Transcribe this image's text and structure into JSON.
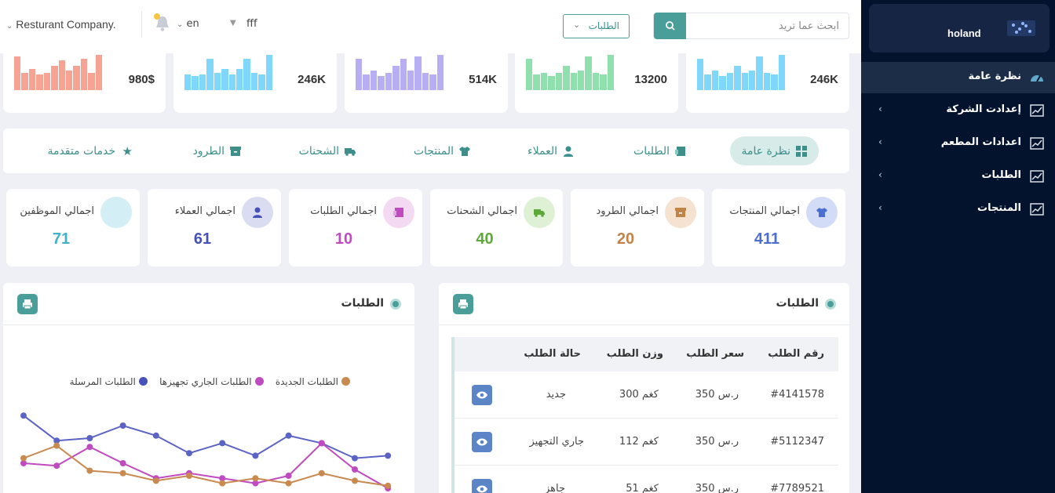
{
  "sidebar": {
    "brand": "holand",
    "items": [
      {
        "label": "نظرة عامة",
        "active": true,
        "icon": "gauge-icon"
      },
      {
        "label": "إعدادت الشركة",
        "icon": "chart-icon"
      },
      {
        "label": "اعدادات المطعم",
        "icon": "chart-icon"
      },
      {
        "label": "الطلبات",
        "icon": "chart-icon"
      },
      {
        "label": "المنتجات",
        "icon": "chart-icon"
      }
    ]
  },
  "topbar": {
    "search_placeholder": "ابحث عما تريد",
    "select_label": "الطلبات",
    "user": "fff",
    "lang": "en",
    "company": "Resturant Company."
  },
  "mini_cards": [
    {
      "value": "246K",
      "color": "#7fd8fb"
    },
    {
      "value": "13200",
      "color": "#8fe0ac"
    },
    {
      "value": "514K",
      "color": "#b7aef3"
    },
    {
      "value": "246K",
      "color": "#7fd8fb"
    },
    {
      "value": "980$",
      "color": "#f7a394"
    }
  ],
  "tabs": [
    {
      "label": "نظرة عامة",
      "active": true,
      "icon": "grid-icon"
    },
    {
      "label": "الطلبات",
      "icon": "orders-icon"
    },
    {
      "label": "العملاء",
      "icon": "customer-icon"
    },
    {
      "label": "المنتجات",
      "icon": "tshirt-icon"
    },
    {
      "label": "الشحنات",
      "icon": "truck-icon"
    },
    {
      "label": "الطرود",
      "icon": "box-icon"
    },
    {
      "label": "خدمات متقدمة",
      "icon": "star-icon"
    }
  ],
  "kpis": [
    {
      "label": "اجمالي المنتجات",
      "value": "411",
      "color": "#4a6fd1",
      "bg": "#d3dcf7"
    },
    {
      "label": "اجمالي الطرود",
      "value": "20",
      "color": "#c08348",
      "bg": "#f5e2d0"
    },
    {
      "label": "اجمالي الشحنات",
      "value": "40",
      "color": "#5ea93a",
      "bg": "#dff1d5"
    },
    {
      "label": "اجمالي الطلبات",
      "value": "10",
      "color": "#c04ac0",
      "bg": "#f4d9f3"
    },
    {
      "label": "اجمالي العملاء",
      "value": "61",
      "color": "#4651b8",
      "bg": "#dadcf2"
    },
    {
      "label": "اجمالي الموظفين",
      "value": "71",
      "color": "#3fb2c6",
      "bg": "#d3eef4"
    }
  ],
  "orders_table": {
    "title": "الطلبات",
    "headers": {
      "id": "رقم الطلب",
      "price": "سعر الطلب",
      "weight": "وزن الطلب",
      "status": "حالة الطلب"
    },
    "rows": [
      {
        "id": "#4141578",
        "price": "350 ر.س",
        "weight": "300 كغم",
        "status": "جديد"
      },
      {
        "id": "#5112347",
        "price": "350 ر.س",
        "weight": "112 كغم",
        "status": "جاري التجهيز"
      },
      {
        "id": "#7789521",
        "price": "350 ر.س",
        "weight": "51 كغم",
        "status": "جاهز"
      }
    ]
  },
  "orders_chart": {
    "title": "الطلبات",
    "legend": [
      {
        "label": "الطلبات الجديدة",
        "color": "#c98a4f"
      },
      {
        "label": "الطلبات الجاري تجهيزها",
        "color": "#c04ac0"
      },
      {
        "label": "الطلبات المرسلة",
        "color": "#4652b9"
      }
    ]
  },
  "chart_data": {
    "type": "line",
    "x": [
      1,
      2,
      3,
      4,
      5,
      6,
      7,
      8,
      9,
      10,
      11,
      12
    ],
    "series": [
      {
        "name": "الطلبات المرسلة",
        "color": "#5b63c4",
        "values": [
          88,
          68,
          70,
          80,
          72,
          58,
          66,
          56,
          72,
          66,
          54,
          56
        ]
      },
      {
        "name": "الطلبات الجاري تجهيزها",
        "color": "#c04ac0",
        "values": [
          50,
          48,
          63,
          50,
          38,
          42,
          38,
          34,
          40,
          66,
          45,
          30
        ]
      },
      {
        "name": "الطلبات الجديدة",
        "color": "#c98a4f",
        "values": [
          54,
          64,
          44,
          42,
          36,
          40,
          34,
          38,
          34,
          42,
          36,
          32
        ]
      }
    ],
    "ylim": [
      0,
      100
    ],
    "grid": false,
    "legend": "top"
  }
}
